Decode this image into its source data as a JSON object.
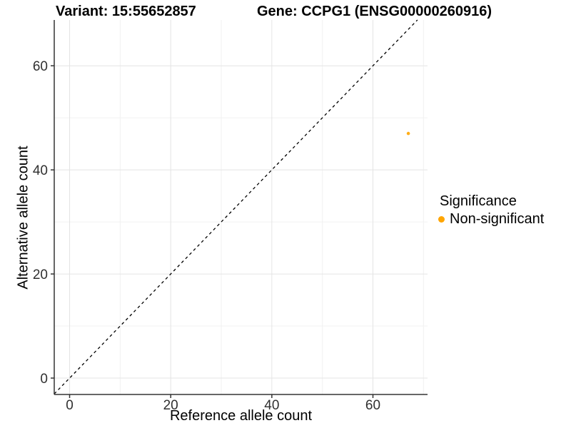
{
  "chart_data": {
    "type": "scatter",
    "title_left": "Variant: 15:55652857",
    "title_right": "Gene: CCPG1 (ENSG00000260916)",
    "xlabel": "Reference allele count",
    "ylabel": "Alternative allele count",
    "xlim": [
      -3.04,
      70.8
    ],
    "ylim": [
      -3.15,
      68.8
    ],
    "xticks": [
      0,
      20,
      40,
      60
    ],
    "yticks": [
      0,
      20,
      40,
      60
    ],
    "xminor": [
      10,
      30,
      50,
      70
    ],
    "yminor": [
      10,
      30,
      50
    ],
    "grid": true,
    "identity_line": {
      "slope": 1,
      "intercept": 0,
      "style": "dashed",
      "color": "#000000"
    },
    "points": [
      {
        "x": 67,
        "y": 47,
        "series": "Non-significant"
      }
    ],
    "series": [
      {
        "name": "Non-significant",
        "color": "#FFA500"
      }
    ],
    "legend": {
      "title": "Significance",
      "position": "right"
    }
  },
  "colors": {
    "point": "#FFA500",
    "grid_major": "#E4E4E4",
    "grid_minor": "#F1F1F1",
    "axis_line": "#333333",
    "tick_mark": "#333333",
    "tick_label": "#303030"
  }
}
